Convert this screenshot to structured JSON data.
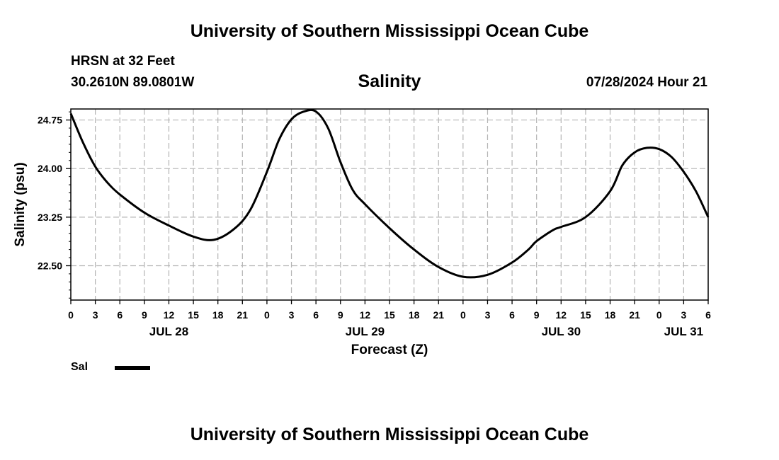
{
  "header": {
    "title": "University of Southern Mississippi Ocean Cube",
    "station": "HRSN at 32 Feet",
    "coordinates": "30.2610N  89.0801W",
    "timestamp": "07/28/2024 Hour 21"
  },
  "footer": {
    "title": "University of Southern Mississippi Ocean Cube"
  },
  "legend": {
    "label": "Sal",
    "color": "#000000"
  },
  "chart_data": {
    "type": "line",
    "title": "Salinity",
    "xlabel": "Forecast (Z)",
    "ylabel": "Salinity (psu)",
    "x_unit": "hours since JUL 28 00Z",
    "xlim": [
      0,
      78
    ],
    "ylim": [
      21.97,
      24.92
    ],
    "y_ticks": [
      22.5,
      23.25,
      24.0,
      24.75
    ],
    "y_tick_labels": [
      "22.50",
      "23.25",
      "24.00",
      "24.75"
    ],
    "x_ticks": [
      0,
      3,
      6,
      9,
      12,
      15,
      18,
      21,
      24,
      27,
      30,
      33,
      36,
      39,
      42,
      45,
      48,
      51,
      54,
      57,
      60,
      63,
      66,
      69,
      72,
      75,
      78
    ],
    "x_tick_labels": [
      "0",
      "3",
      "6",
      "9",
      "12",
      "15",
      "18",
      "21",
      "0",
      "3",
      "6",
      "9",
      "12",
      "15",
      "18",
      "21",
      "0",
      "3",
      "6",
      "9",
      "12",
      "15",
      "18",
      "21",
      "0",
      "3",
      "6"
    ],
    "date_labels": [
      {
        "x": 12,
        "label": "JUL 28"
      },
      {
        "x": 36,
        "label": "JUL 29"
      },
      {
        "x": 60,
        "label": "JUL 30"
      },
      {
        "x": 75,
        "label": "JUL 31"
      }
    ],
    "grid": true,
    "series": [
      {
        "name": "Sal",
        "color": "#000000",
        "x": [
          0,
          1.5,
          3,
          4.5,
          6,
          9,
          12,
          15,
          17.5,
          20,
          22,
          24,
          25.5,
          27,
          28.5,
          30,
          31.5,
          33,
          34.5,
          36,
          39,
          42,
          45,
          48,
          51,
          54,
          56,
          57,
          59,
          60,
          63,
          66,
          67.5,
          69,
          70.5,
          72,
          73.5,
          75,
          76.5,
          78
        ],
        "y": [
          24.85,
          24.4,
          24.03,
          23.78,
          23.6,
          23.32,
          23.12,
          22.95,
          22.9,
          23.07,
          23.37,
          23.95,
          24.45,
          24.76,
          24.88,
          24.88,
          24.62,
          24.1,
          23.67,
          23.45,
          23.08,
          22.75,
          22.48,
          22.33,
          22.36,
          22.55,
          22.75,
          22.88,
          23.05,
          23.1,
          23.25,
          23.65,
          24.05,
          24.25,
          24.32,
          24.3,
          24.18,
          23.95,
          23.65,
          23.25
        ]
      }
    ]
  }
}
